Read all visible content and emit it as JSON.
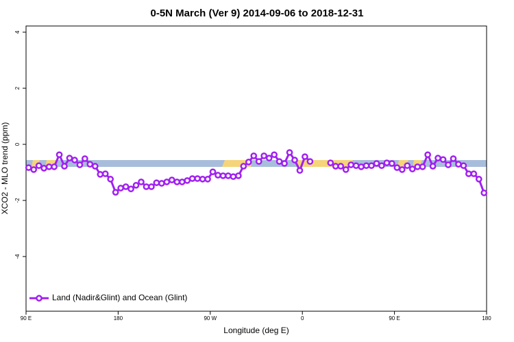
{
  "chart_data": {
    "type": "line",
    "title": "0-5N March (Ver 9)   2014-09-06 to 2018-12-31",
    "x_label": "Longitude (deg E)",
    "y_label": "XCO2 - MLO trend (ppm)",
    "xlim": [
      90,
      540
    ],
    "ylim": [
      -5.95,
      4.22
    ],
    "xticks": [
      {
        "value": 90,
        "label": "90 E"
      },
      {
        "value": 180,
        "label": "180"
      },
      {
        "value": 270,
        "label": "90 W"
      },
      {
        "value": 360,
        "label": "0"
      },
      {
        "value": 450,
        "label": "90 E"
      },
      {
        "value": 540,
        "label": "180"
      }
    ],
    "yticks": [
      -4,
      -2,
      0,
      2,
      4
    ],
    "legend": "lower left",
    "x": [
      92.5,
      97.5,
      102.5,
      107.5,
      112.5,
      117.5,
      122.5,
      127.5,
      132.5,
      137.5,
      142.5,
      147.5,
      152.5,
      157.5,
      162.5,
      167.5,
      172.5,
      177.5,
      182.5,
      187.5,
      192.5,
      197.5,
      202.5,
      207.5,
      212.5,
      217.5,
      222.5,
      227.5,
      232.5,
      237.5,
      242.5,
      247.5,
      252.5,
      257.5,
      262.5,
      267.5,
      272.5,
      277.5,
      282.5,
      287.5,
      292.5,
      297.5,
      302.5,
      307.5,
      312.5,
      317.5,
      322.5,
      327.5,
      332.5,
      337.5,
      342.5,
      347.5,
      352.5,
      357.5,
      362.5,
      367.5,
      372.5,
      377.5,
      382.5,
      387.5,
      392.5,
      397.5,
      402.5,
      407.5,
      412.5,
      417.5,
      422.5,
      427.5,
      432.5,
      437.5,
      442.5,
      447.5,
      452.5,
      457.5,
      462.5,
      467.5,
      472.5,
      477.5,
      482.5,
      487.5,
      492.5,
      497.5,
      502.5,
      507.5,
      512.5,
      517.5,
      522.5,
      527.5,
      532.5,
      537.5
    ],
    "series": [
      {
        "name": "Land (Nadir&Glint) and Ocean (Glint)",
        "color": "#a020f0",
        "values": [
          -0.83,
          -0.9,
          -0.76,
          -0.85,
          -0.8,
          -0.8,
          -0.37,
          -0.78,
          -0.49,
          -0.56,
          -0.73,
          -0.51,
          -0.71,
          -0.78,
          -1.07,
          -1.05,
          -1.24,
          -1.71,
          -1.56,
          -1.51,
          -1.59,
          -1.46,
          -1.34,
          -1.51,
          -1.51,
          -1.37,
          -1.39,
          -1.34,
          -1.27,
          -1.34,
          -1.34,
          -1.29,
          -1.22,
          -1.22,
          -1.24,
          -1.24,
          -0.98,
          -1.1,
          -1.12,
          -1.12,
          -1.15,
          -1.12,
          -0.78,
          -0.63,
          -0.41,
          -0.61,
          -0.41,
          -0.49,
          -0.37,
          -0.61,
          -0.68,
          -0.29,
          -0.56,
          -0.93,
          -0.44,
          -0.61,
          null,
          null,
          null,
          -0.66,
          -0.78,
          -0.78,
          -0.9,
          -0.73,
          -0.76,
          -0.8,
          -0.76,
          -0.76,
          -0.68,
          -0.76,
          -0.66,
          -0.68,
          -0.83,
          -0.9,
          -0.76,
          -0.88,
          -0.8,
          -0.8,
          -0.37,
          -0.78,
          -0.49,
          -0.54,
          -0.73,
          -0.51,
          -0.71,
          -0.76,
          -1.05,
          -1.05,
          -1.24,
          -1.73
        ]
      }
    ]
  }
}
